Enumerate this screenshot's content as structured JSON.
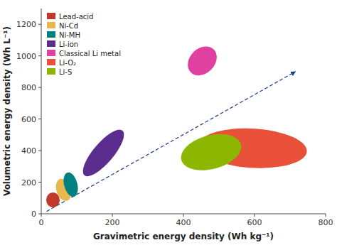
{
  "chart_data": {
    "type": "ellipse",
    "title": "",
    "xlabel": "Gravimetric energy density (Wh kg⁻¹)",
    "ylabel": "Volumetric energy density (Wh L⁻¹)",
    "xlim": [
      0,
      800
    ],
    "ylim": [
      0,
      1300
    ],
    "xticks": [
      0,
      200,
      400,
      600,
      800
    ],
    "yticks": [
      0,
      200,
      400,
      600,
      800,
      1000,
      1200
    ],
    "grid": false,
    "legend": "upper left",
    "arrow": {
      "x": [
        15,
        715
      ],
      "y": [
        15,
        900
      ],
      "color": "#1a3a8a",
      "line_style": "dashed"
    },
    "series": [
      {
        "name": "Lead-acid",
        "color": "#c0392b",
        "cx": 33,
        "cy": 88,
        "width": 38,
        "height": 95,
        "angle": 0
      },
      {
        "name": "Ni-Cd",
        "color": "#e8b84b",
        "cx": 63,
        "cy": 152,
        "width": 42,
        "height": 140,
        "angle": 5
      },
      {
        "name": "Ni-MH",
        "color": "#008080",
        "cx": 83,
        "cy": 185,
        "width": 38,
        "height": 155,
        "angle": 5
      },
      {
        "name": "Li-ion",
        "color": "#5b2d8e",
        "cx": 175,
        "cy": 385,
        "width": 68,
        "height": 310,
        "angle": -18
      },
      {
        "name": "Classical Li metal",
        "color": "#e040a0",
        "cx": 453,
        "cy": 968,
        "width": 78,
        "height": 185,
        "angle": -8
      },
      {
        "name": "Li-O₂",
        "color": "#e8503a",
        "cx": 595,
        "cy": 415,
        "width": 310,
        "height": 245,
        "angle": -18
      },
      {
        "name": "Li-S",
        "color": "#8db600",
        "cx": 478,
        "cy": 390,
        "width": 155,
        "height": 240,
        "angle": -22
      }
    ]
  }
}
